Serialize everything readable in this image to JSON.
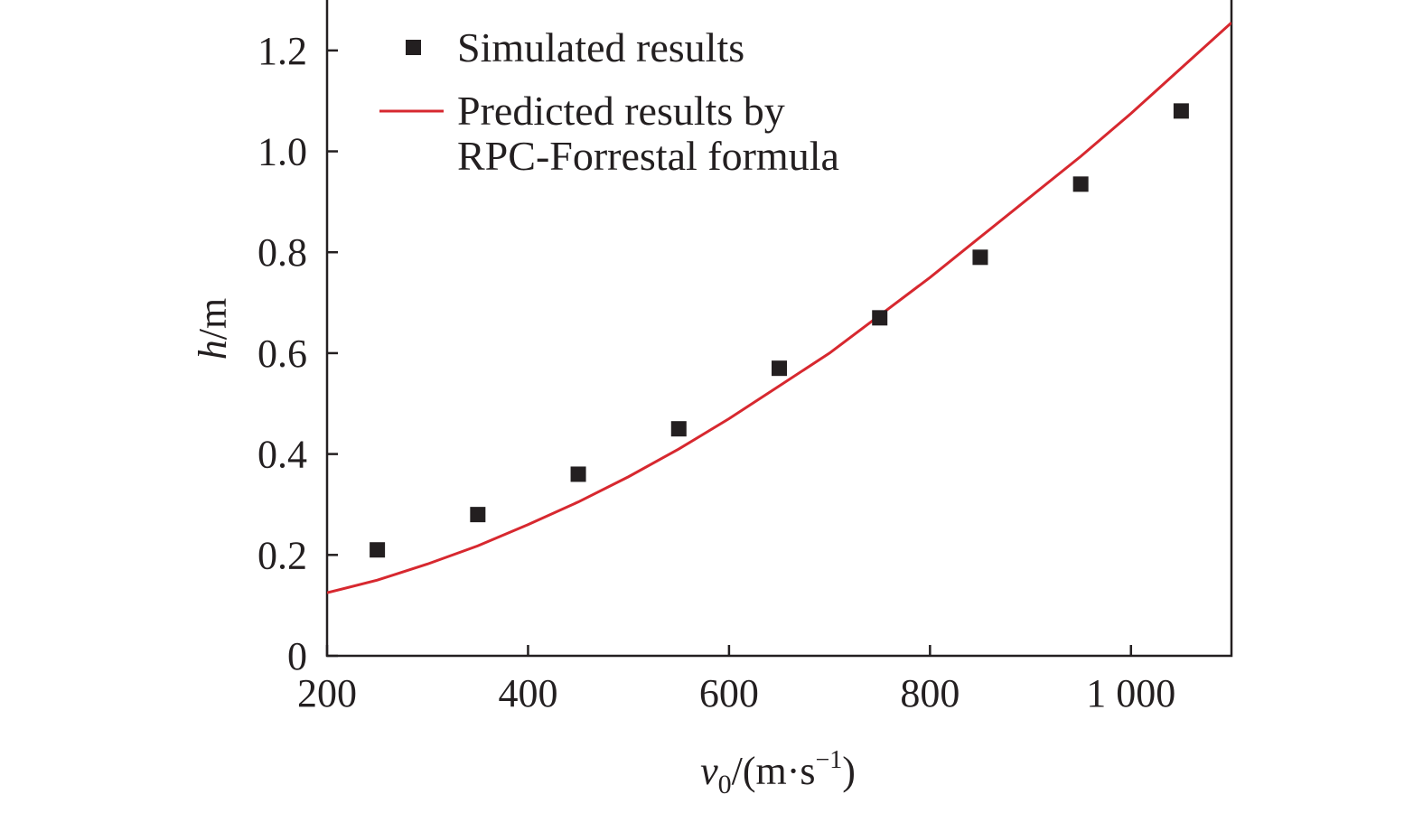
{
  "chart_data": {
    "type": "scatter",
    "title": "",
    "xlabel": {
      "base": "v",
      "sub": "0",
      "unit": "/(m·s",
      "sup": "−1",
      "close": ")"
    },
    "ylabel": {
      "var": "h",
      "unit": "/m"
    },
    "xlim": [
      200,
      1100
    ],
    "ylim": [
      0,
      1.3
    ],
    "xticks": [
      200,
      400,
      600,
      800,
      1000
    ],
    "xtick_labels": [
      "200",
      "400",
      "600",
      "800",
      "1 000"
    ],
    "yticks": [
      0,
      0.2,
      0.4,
      0.6,
      0.8,
      1.0,
      1.2
    ],
    "ytick_labels": [
      "0",
      "0.2",
      "0.4",
      "0.6",
      "0.8",
      "1.0",
      "1.2"
    ],
    "grid": false,
    "legend_position": "top-left",
    "series": [
      {
        "name": "Simulated results",
        "kind": "scatter",
        "marker": "square",
        "color": "#231f20",
        "x": [
          250,
          350,
          450,
          550,
          650,
          750,
          850,
          950,
          1050
        ],
        "y": [
          0.21,
          0.28,
          0.36,
          0.45,
          0.57,
          0.67,
          0.79,
          0.935,
          1.08
        ]
      },
      {
        "name": "Predicted results by RPC-Forrestal formula",
        "legend_lines": [
          "Predicted results by",
          "RPC-Forrestal formula"
        ],
        "kind": "line",
        "color": "#d7282f",
        "x": [
          200,
          250,
          300,
          350,
          400,
          450,
          500,
          550,
          600,
          650,
          700,
          750,
          800,
          850,
          900,
          950,
          1000,
          1050,
          1100
        ],
        "y": [
          0.125,
          0.15,
          0.182,
          0.218,
          0.26,
          0.305,
          0.355,
          0.41,
          0.47,
          0.535,
          0.6,
          0.675,
          0.75,
          0.83,
          0.91,
          0.99,
          1.075,
          1.165,
          1.255
        ]
      }
    ]
  }
}
